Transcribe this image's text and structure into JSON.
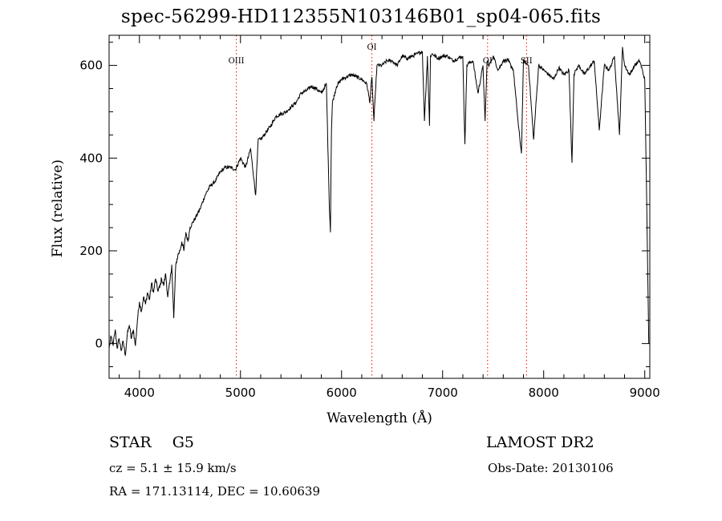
{
  "chart_data": {
    "type": "line",
    "title": "spec-56299-HD112355N103146B01_sp04-065.fits",
    "xlabel": "Wavelength (Å)",
    "ylabel": "Flux (relative)",
    "xlim": [
      3700,
      9050
    ],
    "ylim": [
      -75,
      665
    ],
    "xticks": [
      4000,
      5000,
      6000,
      7000,
      8000,
      9000
    ],
    "yticks": [
      0,
      200,
      400,
      600
    ],
    "grid": false,
    "line_color": "#000000",
    "marker_color": "#ff0000",
    "lines": [
      {
        "label": "OIII",
        "x": 4959
      },
      {
        "label": "OI",
        "x": 6300
      },
      {
        "label": "OI",
        "x": 7445
      },
      {
        "label": "SII",
        "x": 7830
      }
    ],
    "series": [
      {
        "x": [
          3700,
          3720,
          3740,
          3760,
          3780,
          3800,
          3820,
          3840,
          3860,
          3880,
          3900,
          3920,
          3940,
          3960,
          3980,
          4000,
          4020,
          4040,
          4060,
          4080,
          4100,
          4120,
          4140,
          4160,
          4180,
          4200,
          4220,
          4240,
          4260,
          4280,
          4300,
          4320,
          4340,
          4360,
          4380,
          4400,
          4420,
          4440,
          4460,
          4480,
          4500,
          4550,
          4600,
          4650,
          4700,
          4750,
          4800,
          4850,
          4900,
          4950,
          5000,
          5050,
          5100,
          5150,
          5175,
          5200,
          5250,
          5300,
          5350,
          5400,
          5450,
          5500,
          5550,
          5600,
          5650,
          5700,
          5750,
          5800,
          5850,
          5880,
          5890,
          5900,
          5910,
          5950,
          6000,
          6050,
          6100,
          6150,
          6200,
          6250,
          6280,
          6300,
          6320,
          6350,
          6400,
          6450,
          6500,
          6550,
          6600,
          6650,
          6700,
          6750,
          6800,
          6820,
          6850,
          6870,
          6880,
          6900,
          6950,
          7000,
          7050,
          7100,
          7150,
          7200,
          7220,
          7240,
          7260,
          7300,
          7350,
          7400,
          7420,
          7440,
          7460,
          7500,
          7550,
          7600,
          7650,
          7700,
          7750,
          7780,
          7800,
          7850,
          7900,
          7950,
          8000,
          8050,
          8100,
          8150,
          8200,
          8250,
          8280,
          8300,
          8320,
          8350,
          8400,
          8450,
          8500,
          8550,
          8600,
          8650,
          8700,
          8750,
          8780,
          8800,
          8850,
          8900,
          8950,
          9000,
          9020,
          9040
        ],
        "values": [
          -10,
          15,
          -5,
          30,
          -10,
          10,
          -15,
          5,
          -25,
          20,
          40,
          10,
          30,
          -5,
          50,
          90,
          70,
          100,
          85,
          110,
          95,
          130,
          110,
          140,
          115,
          120,
          140,
          125,
          150,
          100,
          130,
          170,
          55,
          170,
          190,
          200,
          220,
          200,
          240,
          220,
          250,
          270,
          290,
          320,
          340,
          350,
          370,
          380,
          380,
          375,
          400,
          380,
          420,
          320,
          440,
          440,
          455,
          470,
          490,
          495,
          500,
          510,
          520,
          540,
          545,
          555,
          550,
          540,
          560,
          290,
          240,
          460,
          520,
          555,
          570,
          575,
          580,
          575,
          570,
          560,
          520,
          575,
          480,
          600,
          600,
          610,
          610,
          600,
          620,
          615,
          620,
          625,
          630,
          480,
          620,
          470,
          620,
          625,
          615,
          620,
          620,
          610,
          615,
          620,
          430,
          600,
          605,
          610,
          540,
          600,
          480,
          610,
          600,
          620,
          590,
          610,
          610,
          590,
          470,
          410,
          610,
          600,
          440,
          600,
          590,
          580,
          570,
          595,
          580,
          590,
          390,
          580,
          590,
          600,
          580,
          595,
          610,
          460,
          600,
          590,
          620,
          450,
          640,
          600,
          580,
          600,
          610,
          570,
          300,
          0
        ]
      }
    ]
  },
  "info": {
    "class": "STAR    G5",
    "survey": "LAMOST DR2",
    "cz": "cz = 5.1 ± 15.9 km/s",
    "obs_date": "Obs-Date: 20130106",
    "radec": "RA = 171.13114, DEC =  10.60639"
  }
}
